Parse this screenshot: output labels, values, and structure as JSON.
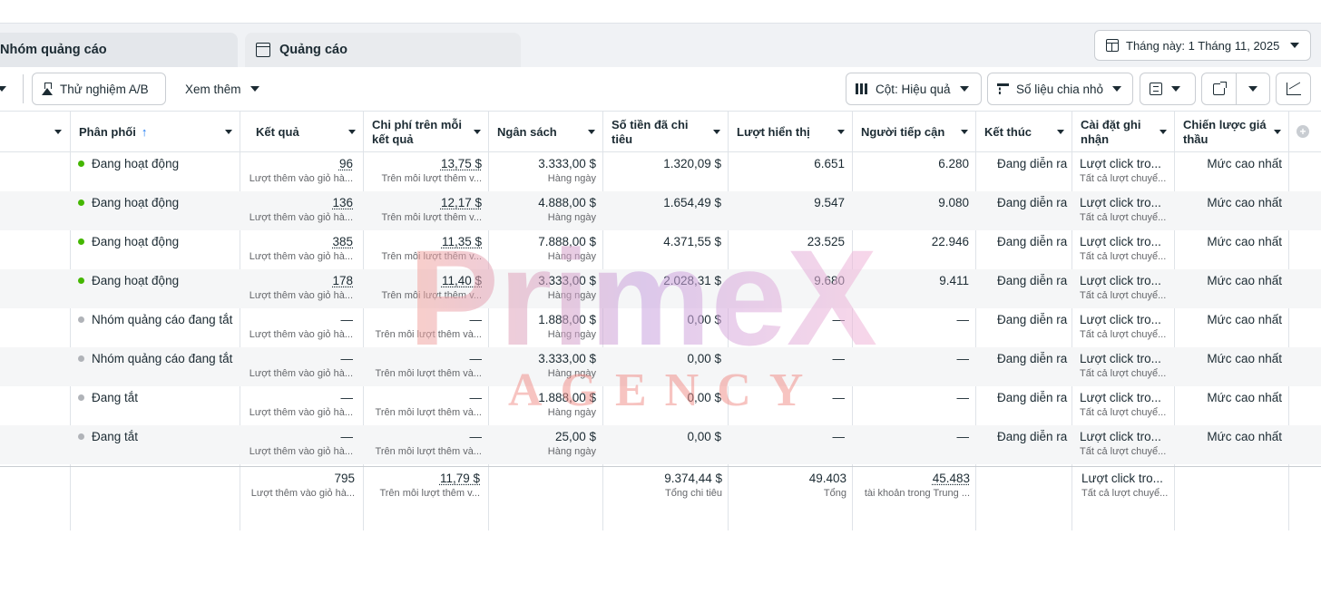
{
  "tabs": [
    {
      "label": "Nhóm quảng cáo",
      "icon": ""
    },
    {
      "label": "Quảng cáo",
      "icon": "ad-icon"
    }
  ],
  "date_range": {
    "label": "Tháng này: 1 Tháng 11, 2025",
    "icon": "calendar-icon"
  },
  "toolbar": {
    "ab_test_label": "Thử nghiệm A/B",
    "see_more_label": "Xem thêm",
    "columns_label": "Cột: Hiệu quả",
    "breakdown_label": "Số liệu chia nhỏ"
  },
  "columns": [
    "Phân phối",
    "Kết quả",
    "Chi phí trên mỗi kết quả",
    "Ngân sách",
    "Số tiền đã chi tiêu",
    "Lượt hiển thị",
    "Người tiếp cận",
    "Kết thúc",
    "Cài đặt ghi nhận",
    "Chiến lược giá thầu"
  ],
  "rows": [
    {
      "status": "Đang hoạt động",
      "active": true,
      "result": "96",
      "result_sub": "Lượt thêm vào giỏ hà...",
      "cpr": "13,75 $",
      "cpr_sub": "Trên mỗi lượt thêm v...",
      "budget": "3.333,00 $",
      "budget_sub": "Hàng ngày",
      "spent": "1.320,09 $",
      "impressions": "6.651",
      "reach": "6.280",
      "ends": "Đang diễn ra",
      "attr": "Lượt click tro...",
      "attr_sub": "Tất cả lượt chuyể...",
      "bid": "Mức cao nhất"
    },
    {
      "status": "Đang hoạt động",
      "active": true,
      "result": "136",
      "result_sub": "Lượt thêm vào giỏ hà...",
      "cpr": "12,17 $",
      "cpr_sub": "Trên mỗi lượt thêm v...",
      "budget": "4.888,00 $",
      "budget_sub": "Hàng ngày",
      "spent": "1.654,49 $",
      "impressions": "9.547",
      "reach": "9.080",
      "ends": "Đang diễn ra",
      "attr": "Lượt click tro...",
      "attr_sub": "Tất cả lượt chuyể...",
      "bid": "Mức cao nhất"
    },
    {
      "status": "Đang hoạt động",
      "active": true,
      "result": "385",
      "result_sub": "Lượt thêm vào giỏ hà...",
      "cpr": "11,35 $",
      "cpr_sub": "Trên mỗi lượt thêm v...",
      "budget": "7.888,00 $",
      "budget_sub": "Hàng ngày",
      "spent": "4.371,55 $",
      "impressions": "23.525",
      "reach": "22.946",
      "ends": "Đang diễn ra",
      "attr": "Lượt click tro...",
      "attr_sub": "Tất cả lượt chuyể...",
      "bid": "Mức cao nhất"
    },
    {
      "status": "Đang hoạt động",
      "active": true,
      "result": "178",
      "result_sub": "Lượt thêm vào giỏ hà...",
      "cpr": "11,40 $",
      "cpr_sub": "Trên mỗi lượt thêm v...",
      "budget": "3.333,00 $",
      "budget_sub": "Hàng ngày",
      "spent": "2.028,31 $",
      "impressions": "9.680",
      "reach": "9.411",
      "ends": "Đang diễn ra",
      "attr": "Lượt click tro...",
      "attr_sub": "Tất cả lượt chuyể...",
      "bid": "Mức cao nhất"
    },
    {
      "status": "Nhóm quảng cáo đang tắt",
      "active": false,
      "result": "—",
      "result_sub": "Lượt thêm vào giỏ hà...",
      "cpr": "—",
      "cpr_sub": "Trên mỗi lượt thêm và...",
      "budget": "1.888,00 $",
      "budget_sub": "Hàng ngày",
      "spent": "0,00 $",
      "impressions": "—",
      "reach": "—",
      "ends": "Đang diễn ra",
      "attr": "Lượt click tro...",
      "attr_sub": "Tất cả lượt chuyể...",
      "bid": "Mức cao nhất"
    },
    {
      "status": "Nhóm quảng cáo đang tắt",
      "active": false,
      "result": "—",
      "result_sub": "Lượt thêm vào giỏ hà...",
      "cpr": "—",
      "cpr_sub": "Trên mỗi lượt thêm và...",
      "budget": "3.333,00 $",
      "budget_sub": "Hàng ngày",
      "spent": "0,00 $",
      "impressions": "—",
      "reach": "—",
      "ends": "Đang diễn ra",
      "attr": "Lượt click tro...",
      "attr_sub": "Tất cả lượt chuyể...",
      "bid": "Mức cao nhất"
    },
    {
      "status": "Đang tắt",
      "active": false,
      "result": "—",
      "result_sub": "Lượt thêm vào giỏ hà...",
      "cpr": "—",
      "cpr_sub": "Trên mỗi lượt thêm và...",
      "budget": "1.888,00 $",
      "budget_sub": "Hàng ngày",
      "spent": "0,00 $",
      "impressions": "—",
      "reach": "—",
      "ends": "Đang diễn ra",
      "attr": "Lượt click tro...",
      "attr_sub": "Tất cả lượt chuyể...",
      "bid": "Mức cao nhất"
    },
    {
      "status": "Đang tắt",
      "active": false,
      "result": "—",
      "result_sub": "Lượt thêm vào giỏ hà...",
      "cpr": "—",
      "cpr_sub": "Trên mỗi lượt thêm và...",
      "budget": "25,00 $",
      "budget_sub": "Hàng ngày",
      "spent": "0,00 $",
      "impressions": "—",
      "reach": "—",
      "ends": "Đang diễn ra",
      "attr": "Lượt click tro...",
      "attr_sub": "Tất cả lượt chuyể...",
      "bid": "Mức cao nhất"
    }
  ],
  "summary": {
    "result": "795",
    "result_sub": "Lượt thêm vào giỏ hà...",
    "cpr": "11,79 $",
    "cpr_sub": "Trên mỗi lượt thêm v...",
    "spent": "9.374,44 $",
    "spent_sub": "Tổng chi tiêu",
    "impressions": "49.403",
    "impressions_sub": "Tổng",
    "reach": "45.483",
    "reach_sub": "tài khoản trong Trung ...",
    "attr": "Lượt click tro...",
    "attr_sub": "Tất cả lượt chuyể..."
  },
  "watermark": {
    "line1": "PrimeX",
    "line2": "AGENCY"
  },
  "colors": {
    "active": "#44b700",
    "inactive": "#b0b3b8",
    "accent": "#1877f2"
  }
}
